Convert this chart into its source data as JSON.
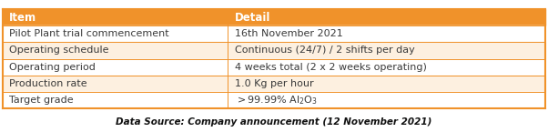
{
  "header": [
    "Item",
    "Detail"
  ],
  "rows": [
    [
      "Pilot Plant trial commencement",
      "16th November 2021"
    ],
    [
      "Operating schedule",
      "Continuous (24/7) / 2 shifts per day"
    ],
    [
      "Operating period",
      "4 weeks total (2 x 2 weeks operating)"
    ],
    [
      "Production rate",
      "1.0 Kg per hour"
    ],
    [
      "Target grade",
      ">99.99% Al₂O₃"
    ]
  ],
  "header_bg": "#F0922A",
  "header_text": "#FFFFFF",
  "row_bg_odd": "#FFFFFF",
  "row_bg_even": "#FDF0E0",
  "row_text": "#3A3A3A",
  "border_color": "#F0922A",
  "caption": "Data Source: Company announcement (12 November 2021)",
  "col_split": 0.415,
  "figsize": [
    6.02,
    1.45
  ],
  "dpi": 100
}
